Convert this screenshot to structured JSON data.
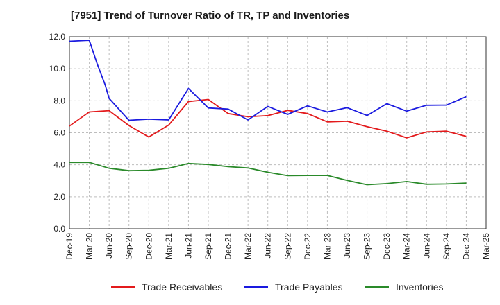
{
  "chart_data": {
    "type": "line",
    "title": "[7951]  Trend of Turnover Ratio of TR, TP and Inventories",
    "xlabel": "",
    "ylabel": "",
    "ylim": [
      0,
      12
    ],
    "y_ticks": [
      "0.0",
      "2.0",
      "4.0",
      "6.0",
      "8.0",
      "10.0",
      "12.0"
    ],
    "y_tick_values": [
      0,
      2,
      4,
      6,
      8,
      10,
      12
    ],
    "grid": "dashed",
    "legend_position": "bottom",
    "x": [
      "Dec-19",
      "Mar-20",
      "Jun-20",
      "Sep-20",
      "Dec-20",
      "Mar-21",
      "Jun-21",
      "Sep-21",
      "Dec-21",
      "Mar-22",
      "Jun-22",
      "Sep-22",
      "Dec-22",
      "Mar-23",
      "Jun-23",
      "Sep-23",
      "Dec-23",
      "Mar-24",
      "Jun-24",
      "Sep-24",
      "Dec-24",
      "Mar-25"
    ],
    "x_tick_labels": [
      "Dec-19",
      "Mar-20",
      "Jun-20",
      "Sep-20",
      "Dec-20",
      "Mar-21",
      "Jun-21",
      "Sep-21",
      "Dec-21",
      "Mar-22",
      "Jun-22",
      "Sep-22",
      "Dec-22",
      "Mar-23",
      "Jun-23",
      "Sep-23",
      "Dec-23",
      "Mar-24",
      "Jun-24",
      "Sep-24",
      "Dec-24",
      "Mar-25"
    ],
    "series": [
      {
        "name": "Trade Receivables",
        "color": "#e31a1c",
        "points": [
          [
            0,
            6.42
          ],
          [
            1,
            7.3
          ],
          [
            2,
            7.38
          ],
          [
            3,
            6.45
          ],
          [
            4,
            5.73
          ],
          [
            5,
            6.48
          ],
          [
            6,
            7.95
          ],
          [
            7,
            8.08
          ],
          [
            8,
            7.2
          ],
          [
            9,
            7.0
          ],
          [
            10,
            7.07
          ],
          [
            11,
            7.4
          ],
          [
            12,
            7.2
          ],
          [
            13,
            6.68
          ],
          [
            14,
            6.72
          ],
          [
            15,
            6.38
          ],
          [
            16,
            6.1
          ],
          [
            17,
            5.68
          ],
          [
            18,
            6.05
          ],
          [
            19,
            6.1
          ],
          [
            20,
            5.77
          ]
        ]
      },
      {
        "name": "Trade Payables",
        "color": "#1a1adf",
        "points": [
          [
            0,
            11.72
          ],
          [
            1,
            11.78
          ],
          [
            1.4,
            10.3
          ],
          [
            1.8,
            9.0
          ],
          [
            2,
            8.15
          ],
          [
            3,
            6.78
          ],
          [
            4,
            6.85
          ],
          [
            5,
            6.8
          ],
          [
            6,
            8.77
          ],
          [
            7,
            7.55
          ],
          [
            8,
            7.48
          ],
          [
            9,
            6.8
          ],
          [
            10,
            7.65
          ],
          [
            11,
            7.15
          ],
          [
            12,
            7.68
          ],
          [
            13,
            7.3
          ],
          [
            14,
            7.57
          ],
          [
            15,
            7.08
          ],
          [
            16,
            7.82
          ],
          [
            17,
            7.35
          ],
          [
            18,
            7.72
          ],
          [
            19,
            7.73
          ],
          [
            20,
            8.25
          ]
        ]
      },
      {
        "name": "Inventories",
        "color": "#2a8a2a",
        "points": [
          [
            0,
            4.15
          ],
          [
            1,
            4.15
          ],
          [
            2,
            3.78
          ],
          [
            3,
            3.63
          ],
          [
            4,
            3.65
          ],
          [
            5,
            3.78
          ],
          [
            6,
            4.08
          ],
          [
            7,
            4.02
          ],
          [
            8,
            3.88
          ],
          [
            9,
            3.8
          ],
          [
            10,
            3.53
          ],
          [
            11,
            3.32
          ],
          [
            12,
            3.33
          ],
          [
            13,
            3.33
          ],
          [
            14,
            3.02
          ],
          [
            15,
            2.75
          ],
          [
            16,
            2.82
          ],
          [
            17,
            2.95
          ],
          [
            18,
            2.78
          ],
          [
            19,
            2.8
          ],
          [
            20,
            2.85
          ]
        ]
      }
    ]
  }
}
